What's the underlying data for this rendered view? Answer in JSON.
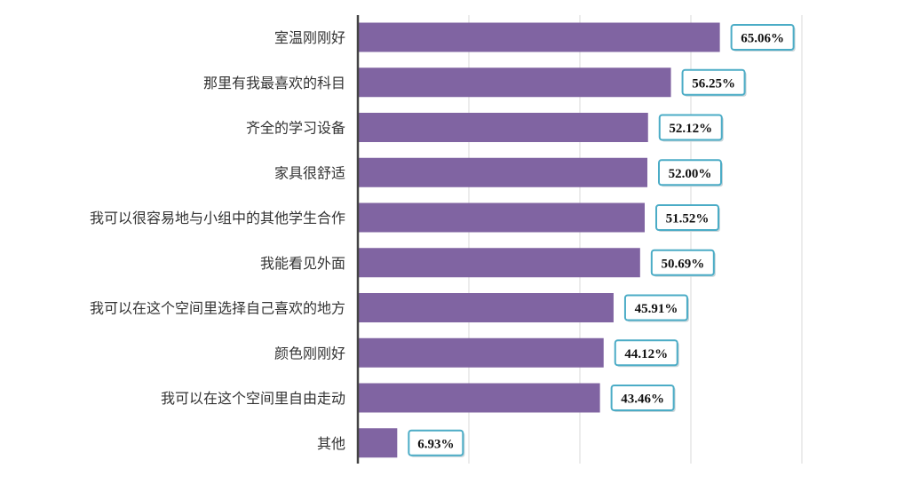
{
  "chart_data": {
    "type": "bar",
    "orientation": "horizontal",
    "categories": [
      "室温刚刚好",
      "那里有我最喜欢的科目",
      "齐全的学习设备",
      "家具很舒适",
      "我可以很容易地与小组中的其他学生合作",
      "我能看见外面",
      "我可以在这个空间里选择自己喜欢的地方",
      "颜色刚刚好",
      "我可以在这个空间里自由走动",
      "其他"
    ],
    "values": [
      65.06,
      56.25,
      52.12,
      52.0,
      51.52,
      50.69,
      45.91,
      44.12,
      43.46,
      6.93
    ],
    "value_labels": [
      "65.06%",
      "56.25%",
      "52.12%",
      "52.00%",
      "51.52%",
      "50.69%",
      "45.91%",
      "44.12%",
      "43.46%",
      "6.93%"
    ],
    "xlim": [
      0,
      80
    ],
    "grid": true,
    "bar_color": "#8064a2",
    "label_border_color": "#4bacc6"
  }
}
